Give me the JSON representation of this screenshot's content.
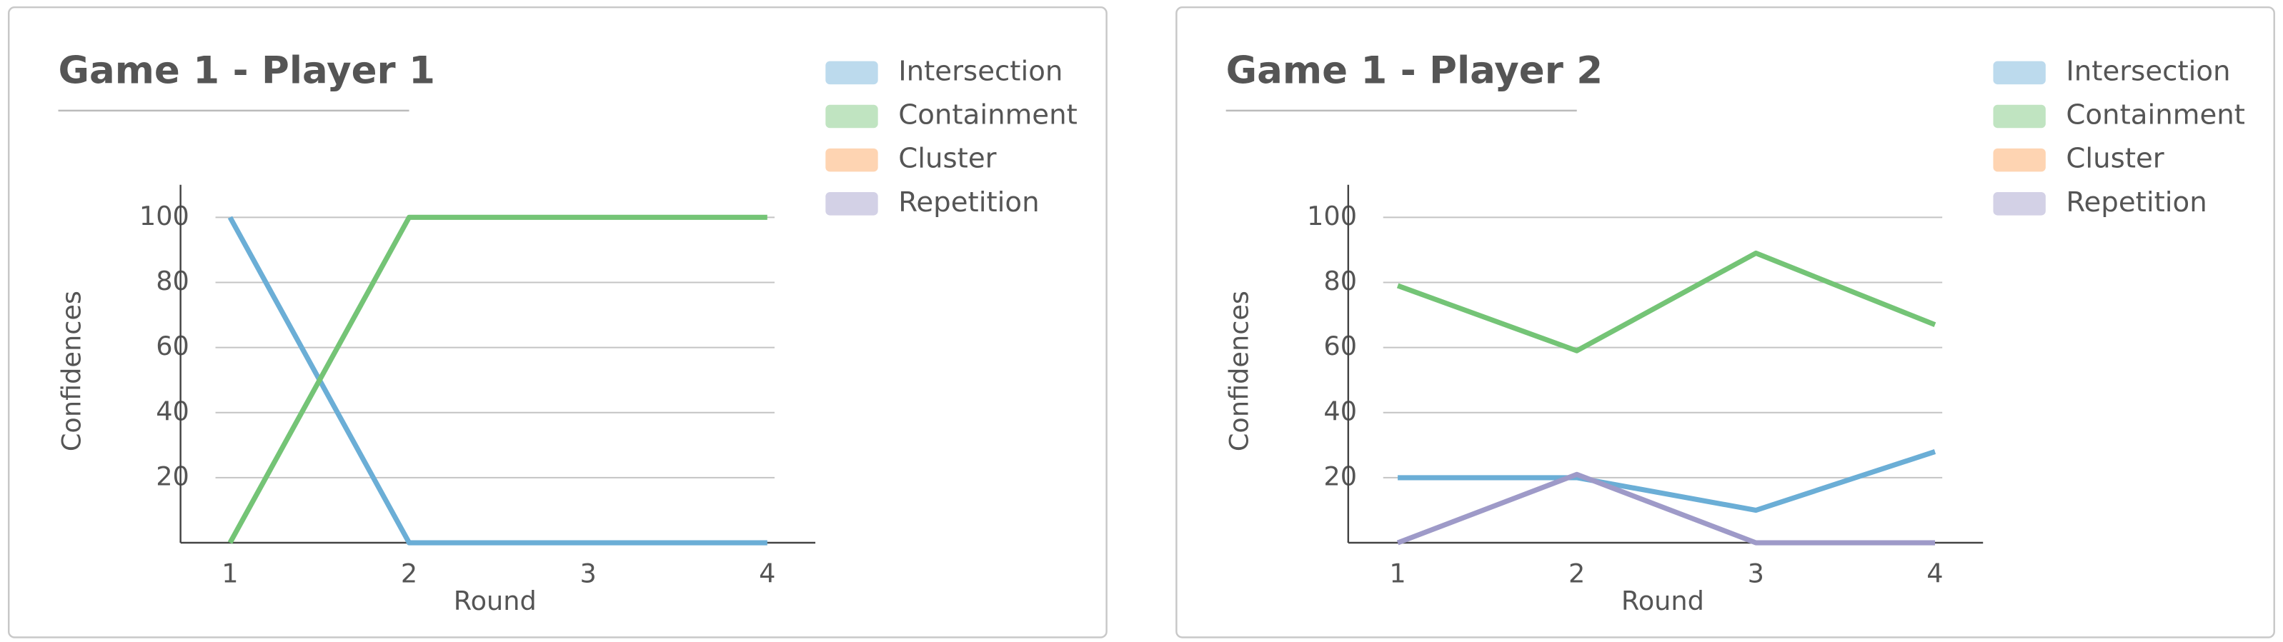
{
  "chart_data": [
    {
      "type": "line",
      "title": "Game 1 - Player 1",
      "xlabel": "Round",
      "ylabel": "Confidences",
      "categories": [
        "1",
        "2",
        "3",
        "4"
      ],
      "series": [
        {
          "name": "Intersection",
          "color": "#6baed6",
          "values": [
            100,
            0,
            0,
            0
          ]
        },
        {
          "name": "Containment",
          "color": "#74c476",
          "values": [
            0,
            100,
            100,
            100
          ]
        },
        {
          "name": "Cluster",
          "color": "#fd9f55",
          "values": [
            null,
            null,
            null,
            null
          ]
        },
        {
          "name": "Repetition",
          "color": "#9e9ac8",
          "values": [
            null,
            null,
            null,
            null
          ]
        }
      ],
      "ylim": [
        0,
        110
      ],
      "yticks": [
        20,
        40,
        60,
        80,
        100
      ],
      "grid": true,
      "legend": "right"
    },
    {
      "type": "line",
      "title": "Game 1 - Player 2",
      "xlabel": "Round",
      "ylabel": "Confidences",
      "categories": [
        "1",
        "2",
        "3",
        "4"
      ],
      "series": [
        {
          "name": "Intersection",
          "color": "#6baed6",
          "values": [
            20,
            20,
            10,
            28
          ]
        },
        {
          "name": "Containment",
          "color": "#74c476",
          "values": [
            79,
            59,
            89,
            67
          ]
        },
        {
          "name": "Cluster",
          "color": "#fd9f55",
          "values": [
            null,
            null,
            null,
            null
          ]
        },
        {
          "name": "Repetition",
          "color": "#9e9ac8",
          "values": [
            0,
            21,
            0,
            0
          ]
        }
      ],
      "ylim": [
        0,
        110
      ],
      "yticks": [
        20,
        40,
        60,
        80,
        100
      ],
      "grid": true,
      "legend": "right"
    }
  ]
}
